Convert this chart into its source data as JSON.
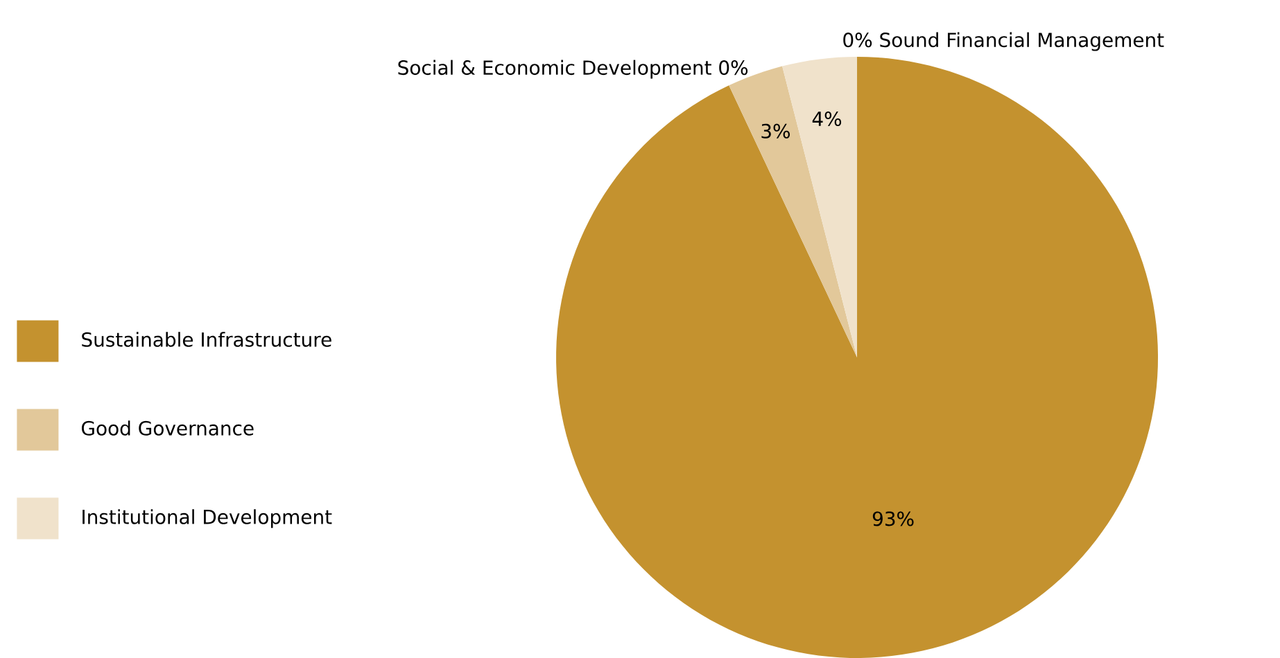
{
  "chart_data": {
    "type": "pie",
    "categories": [
      "Sustainable Infrastructure",
      "Good Governance",
      "Institutional Development",
      "Social & Economic Development",
      "Sound Financial Management"
    ],
    "values": [
      93,
      3,
      4,
      0,
      0
    ],
    "value_labels": [
      "93%",
      "3%",
      "4%",
      "0%",
      "0%"
    ],
    "colors": [
      "#c4922f",
      "#e2c89a",
      "#f0e2cb",
      "#d9b878",
      "#e8d4b0"
    ],
    "legend": "left"
  }
}
